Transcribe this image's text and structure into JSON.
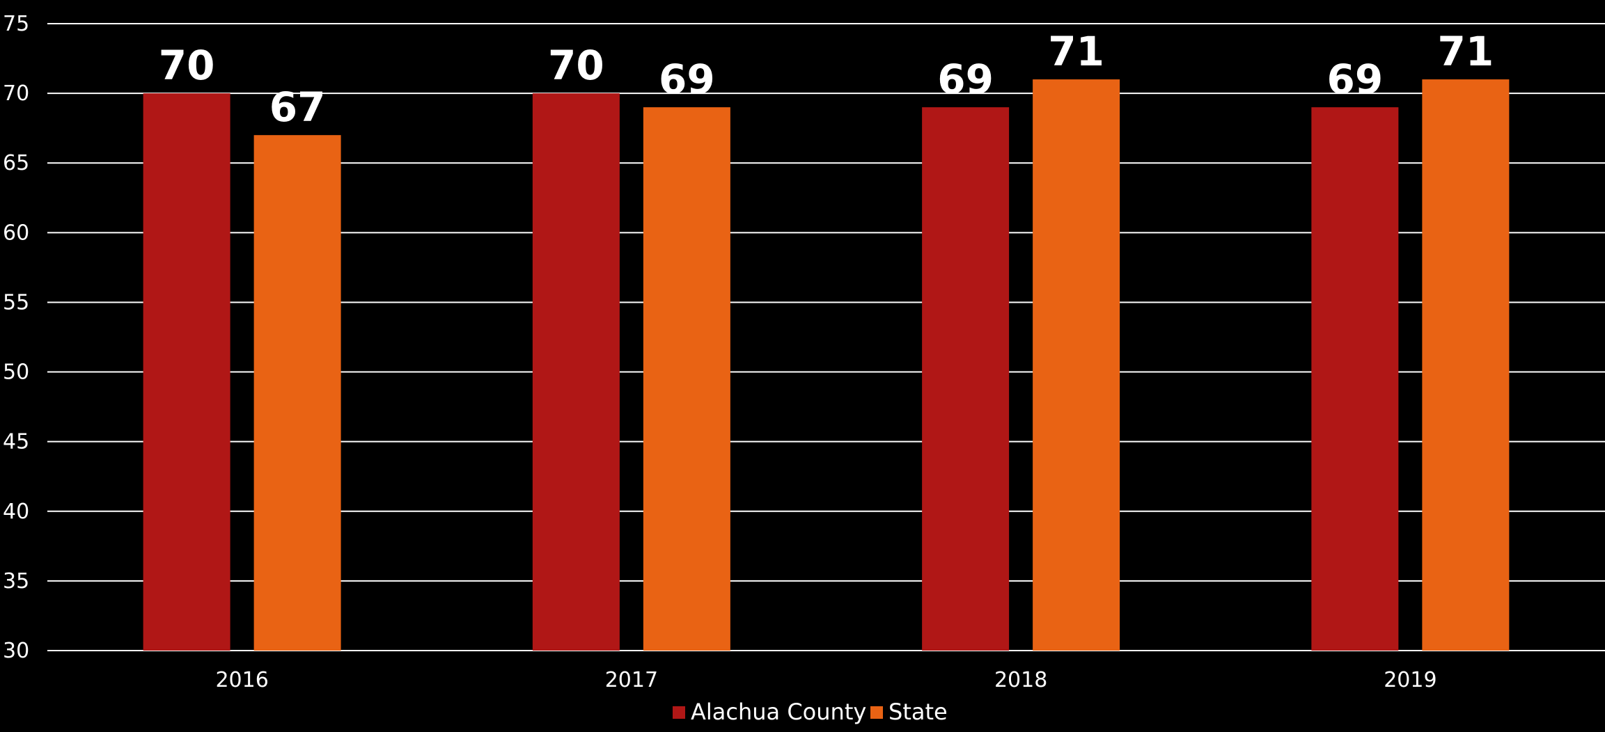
{
  "chart_data": {
    "type": "bar",
    "categories": [
      "2016",
      "2017",
      "2018",
      "2019"
    ],
    "series": [
      {
        "name": "Alachua County",
        "values": [
          70,
          70,
          69,
          69
        ],
        "color": "#b01716"
      },
      {
        "name": "State",
        "values": [
          67,
          69,
          71,
          71
        ],
        "color": "#e96314"
      }
    ],
    "y_ticks": [
      "30",
      "35",
      "40",
      "45",
      "50",
      "55",
      "60",
      "65",
      "70",
      "75"
    ],
    "ylim": [
      30,
      75
    ],
    "grid": true,
    "legend_position": "bottom",
    "background": "#000000",
    "gridline_color": "#ffffff"
  }
}
